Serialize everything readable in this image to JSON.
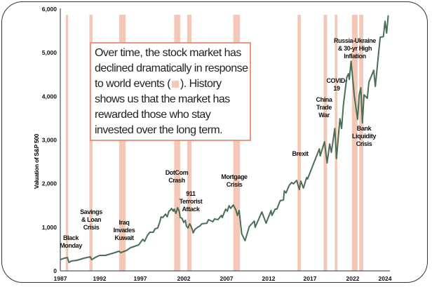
{
  "chart_data": {
    "type": "line",
    "ylabel": "Valuation of S&P 500",
    "ylim": [
      0,
      6000
    ],
    "yticks": [
      "0",
      "1,000",
      "2,000",
      "3,000",
      "4,000",
      "5,000",
      "6,000"
    ],
    "xticks": [
      "1987",
      "1992",
      "1997",
      "2002",
      "2007",
      "2012",
      "2017",
      "2022",
      "2024"
    ],
    "grid": false,
    "colors": {
      "line": "#4a6e56",
      "event_band": "#f4c8b6",
      "callout_border": "#e9977f"
    },
    "series": [
      {
        "x": [
          1987.0,
          1987.5,
          1987.9,
          1988.1,
          1988.4,
          1989.1,
          1990.0,
          1990.8,
          1991.0,
          1991.6,
          1992.0,
          1992.7,
          1993.6,
          1994.4,
          1994.6,
          1995.3,
          1995.8,
          1996.8,
          1997.3,
          1997.5,
          1997.8,
          1998.1,
          1998.5,
          1998.7,
          1999.0,
          1999.2,
          1999.4,
          1999.6,
          1999.9,
          2000.1,
          2000.3,
          2000.5,
          2000.6,
          2000.8,
          2000.9,
          2001.1,
          2001.3,
          2001.5,
          2001.6,
          2001.8,
          2002.0,
          2002.2,
          2002.3,
          2002.5,
          2002.7,
          2002.8,
          2003.0,
          2003.1,
          2003.3,
          2003.6,
          2003.9,
          2004.1,
          2004.7,
          2004.9,
          2005.4,
          2005.6,
          2006.0,
          2006.4,
          2006.5,
          2006.9,
          2007.1,
          2007.3,
          2007.5,
          2007.8,
          2008.1,
          2008.3,
          2008.5,
          2008.8,
          2009.2,
          2009.7,
          2010.3,
          2010.4,
          2011.2,
          2011.7,
          2012.3,
          2012.4,
          2012.8,
          2013.0,
          2013.4,
          2013.8,
          2013.9,
          2014.1,
          2014.5,
          2014.8,
          2015.0,
          2015.4,
          2015.7,
          2015.9,
          2016.2,
          2016.6,
          2016.7,
          2018.1,
          2018.2,
          2018.7,
          2019.0,
          2019.3,
          2019.5,
          2019.9,
          2020.1,
          2020.5,
          2020.7,
          2020.9,
          2021.3,
          2021.5,
          2021.6,
          2021.8,
          2022.1,
          2022.3,
          2022.4,
          2022.5,
          2022.6,
          2022.7,
          2022.9,
          2023.0,
          2023.3,
          2023.4,
          2023.7,
          2023.9,
          2024.0,
          2024.1,
          2024.2
        ],
        "y": [
          257,
          289,
          305,
          193,
          225,
          241,
          289,
          322,
          257,
          322,
          354,
          354,
          402,
          450,
          418,
          466,
          531,
          595,
          724,
          675,
          804,
          884,
          884,
          965,
          981,
          1093,
          1238,
          1222,
          1302,
          1238,
          1367,
          1399,
          1431,
          1367,
          1415,
          1319,
          1447,
          1351,
          1222,
          1206,
          1110,
          1158,
          1029,
          981,
          1077,
          1045,
          949,
          868,
          949,
          997,
          1029,
          1077,
          1093,
          1174,
          1126,
          1190,
          1174,
          1270,
          1222,
          1415,
          1367,
          1495,
          1431,
          1512,
          1399,
          1270,
          1383,
          852,
          691,
          1013,
          1142,
          997,
          1351,
          1093,
          1383,
          1270,
          1415,
          1415,
          1608,
          1624,
          1833,
          1785,
          1962,
          2026,
          1994,
          2074,
          1865,
          2058,
          1897,
          2139,
          2106,
          2798,
          2637,
          2959,
          2476,
          2910,
          2717,
          3264,
          2573,
          3489,
          3264,
          3795,
          4438,
          4518,
          4390,
          4808,
          4004,
          3473,
          4036,
          4197,
          3393,
          4036,
          3956,
          4326,
          4599,
          4229,
          5355,
          5371,
          5724,
          5451,
          5853
        ]
      }
    ],
    "event_bands": [
      [
        1987.7,
        1988.0
      ],
      [
        1990.7,
        1991.1
      ],
      [
        1994.4,
        1995.2
      ],
      [
        2000.9,
        2001.6
      ],
      [
        2002.4,
        2002.9
      ],
      [
        2007.8,
        2008.6
      ],
      [
        2015.5,
        2015.9
      ],
      [
        2018.6,
        2019.0
      ],
      [
        2019.9,
        2020.2
      ],
      [
        2021.9,
        2022.3
      ],
      [
        2022.4,
        2022.65
      ]
    ],
    "annotations": [
      "Black\nMonday",
      "Savings\n& Loan\nCrisis",
      "Iraq\nInvades\nKuwait",
      "DotCom\nCrash",
      "911\nTerrorist\nAttack",
      "Mortgage\nCrisis",
      "Brexit",
      "China\nTrade\nWar",
      "COVID-\n19",
      "Russia-Ukraine\n& 30-yr High\nInflation",
      "Bank\nLiquidity\nCrisis"
    ],
    "callout": {
      "before_swatch": "Over time, the stock market has declined dramatically in response to world events (",
      "after_swatch": "). History shows us that the market has rewarded those who stay invested over the long term."
    }
  }
}
